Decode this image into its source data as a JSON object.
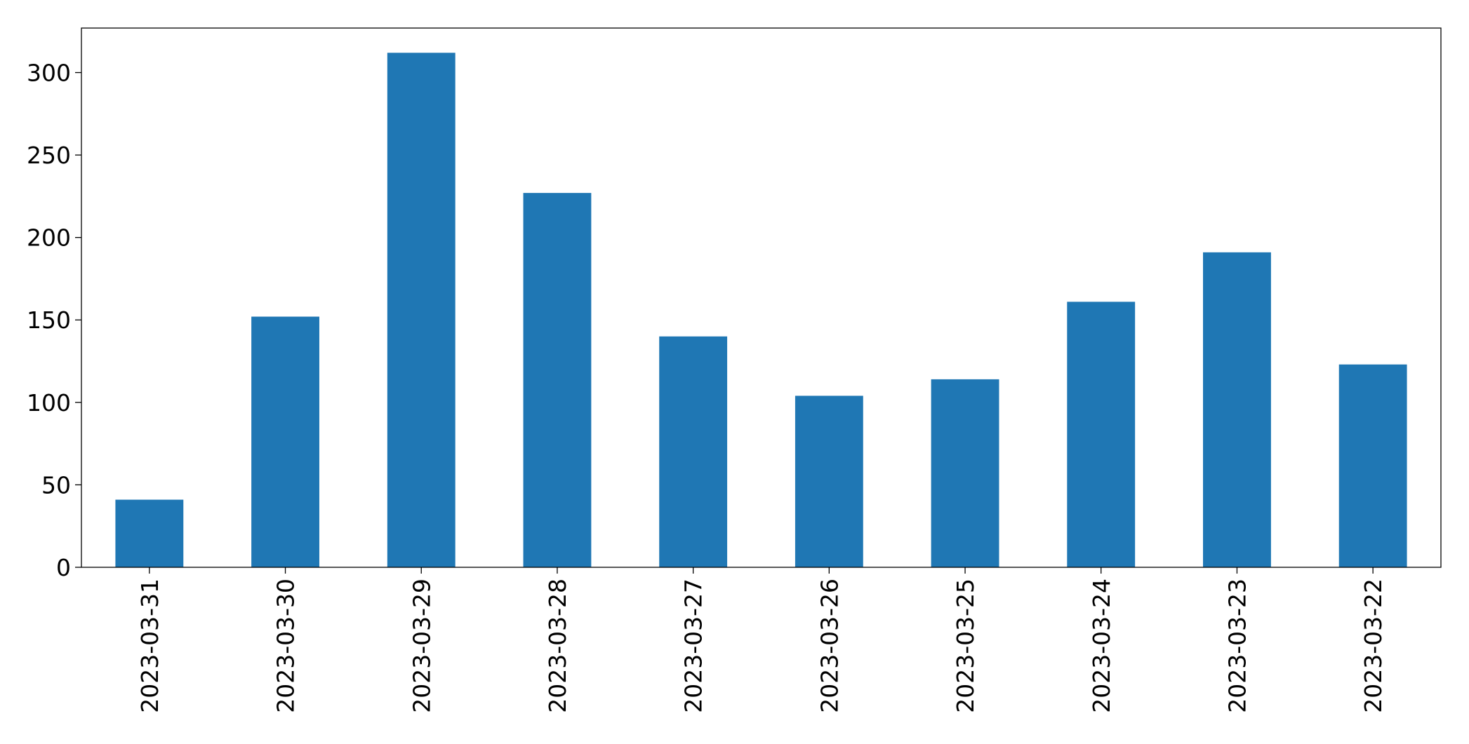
{
  "chart_data": {
    "type": "bar",
    "categories": [
      "2023-03-31",
      "2023-03-30",
      "2023-03-29",
      "2023-03-28",
      "2023-03-27",
      "2023-03-26",
      "2023-03-25",
      "2023-03-24",
      "2023-03-23",
      "2023-03-22"
    ],
    "values": [
      41,
      152,
      312,
      227,
      140,
      104,
      114,
      161,
      191,
      123
    ],
    "color": "#1f77b4",
    "ylim": [
      0,
      327
    ],
    "yticks": [
      0,
      50,
      100,
      150,
      200,
      250,
      300
    ],
    "grid": false
  }
}
